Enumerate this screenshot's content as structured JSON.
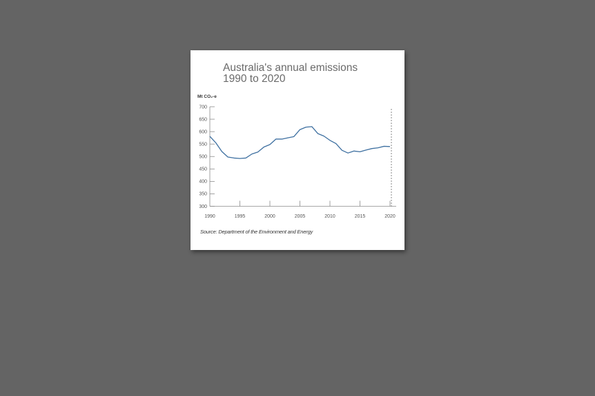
{
  "chart_data": {
    "type": "line",
    "title": "Australia's annual emissions",
    "subtitle": "1990 to 2020",
    "ylabel": "Mt CO₂-e",
    "xlabel": "",
    "source": "Source: Department of the Environment and Energy",
    "xlim": [
      1990,
      2021
    ],
    "ylim": [
      300,
      700
    ],
    "yticks": [
      300,
      350,
      400,
      450,
      500,
      550,
      600,
      650,
      700
    ],
    "xticks": [
      1990,
      1995,
      2000,
      2005,
      2010,
      2015,
      2020
    ],
    "marker_line_x": 2020,
    "grid": false,
    "line_color": "#3d6fa0",
    "series": [
      {
        "x": [
          1990,
          1991,
          1992,
          1993,
          1994,
          1995,
          1996,
          1997,
          1998,
          1999,
          2000,
          2001,
          2002,
          2003,
          2004,
          2005,
          2006,
          2007,
          2008,
          2009,
          2010,
          2011,
          2012,
          2013,
          2014,
          2015,
          2016,
          2017,
          2018,
          2019,
          2020
        ],
        "y": [
          581,
          555,
          520,
          498,
          494,
          492,
          494,
          510,
          518,
          538,
          548,
          570,
          570,
          575,
          580,
          608,
          618,
          620,
          592,
          582,
          565,
          552,
          525,
          514,
          522,
          519,
          526,
          532,
          535,
          541,
          540
        ]
      }
    ]
  }
}
